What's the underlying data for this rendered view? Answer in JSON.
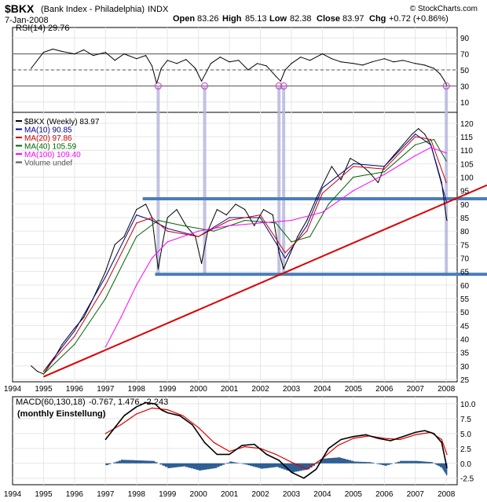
{
  "header": {
    "symbol": "$BKX",
    "name": "(Bank Index - Philadelphia)",
    "exchange": "INDX",
    "date": "7-Jan-2008",
    "logo": "© StockCharts.com",
    "open_label": "Open",
    "open": "83.26",
    "high_label": "High",
    "high": "85.13",
    "low_label": "Low",
    "low": "82.38",
    "close_label": "Close",
    "close": "83.97",
    "chg_label": "Chg",
    "chg": "+0.72 (+0.86%)"
  },
  "colors": {
    "price": "#000000",
    "ma10": "#00008b",
    "ma20": "#cc0000",
    "ma40": "#006400",
    "ma100": "#ff00ff",
    "trend": "#dd0000",
    "hlines": "#4a7ebb",
    "markers": "#b8b8dd",
    "macd_hist": "#2f5f94",
    "macd_signal": "#dd0000"
  },
  "chart_data": [
    {
      "type": "line",
      "title": "RSI(14) 29.76",
      "ylim": [
        0,
        100
      ],
      "yticks": [
        "90",
        "70",
        "50",
        "30",
        "10"
      ],
      "reference_lines": [
        70,
        50,
        30
      ],
      "series": [
        {
          "name": "RSI(14) 29.76",
          "x": [
            1994.6,
            1995.0,
            1995.3,
            1995.6,
            1996.0,
            1996.3,
            1996.6,
            1997.0,
            1997.3,
            1997.6,
            1998.0,
            1998.3,
            1998.5,
            1998.65,
            1998.8,
            1999.0,
            1999.3,
            1999.6,
            1999.9,
            2000.1,
            2000.4,
            2000.7,
            2001.0,
            2001.3,
            2001.6,
            2001.9,
            2002.2,
            2002.5,
            2002.65,
            2002.8,
            2003.0,
            2003.3,
            2003.6,
            2004.0,
            2004.3,
            2004.6,
            2005.0,
            2005.3,
            2005.6,
            2006.0,
            2006.3,
            2006.6,
            2007.0,
            2007.3,
            2007.6,
            2007.8,
            2007.95,
            2008.02
          ],
          "values": [
            52,
            72,
            76,
            73,
            70,
            75,
            68,
            72,
            62,
            70,
            64,
            68,
            55,
            33,
            52,
            62,
            58,
            63,
            52,
            36,
            58,
            66,
            60,
            62,
            50,
            58,
            55,
            42,
            36,
            50,
            58,
            66,
            62,
            70,
            64,
            60,
            58,
            56,
            60,
            64,
            60,
            62,
            58,
            56,
            52,
            45,
            36,
            30
          ]
        }
      ]
    },
    {
      "type": "line",
      "title": "$BKX (Weekly) 83.97",
      "ylim": [
        25,
        122
      ],
      "yticks": [
        "120",
        "115",
        "110",
        "105",
        "100",
        "95",
        "90",
        "85",
        "80",
        "75",
        "70",
        "65",
        "60",
        "55",
        "50",
        "45",
        "40",
        "35",
        "30",
        "25"
      ],
      "x_ticks": [
        "1994",
        "1995",
        "1996",
        "1997",
        "1998",
        "1999",
        "2000",
        "2001",
        "2002",
        "2003",
        "2004",
        "2005",
        "2006",
        "2007",
        "2008"
      ],
      "support_resistance": [
        92,
        64
      ],
      "trendline": {
        "x": [
          1995.0,
          2008.5
        ],
        "values": [
          26,
          93
        ]
      },
      "event_markers": [
        1998.7,
        2000.2,
        2002.6,
        2002.75,
        2008.0
      ],
      "series": [
        {
          "name": "$BKX (Weekly) 83.97",
          "x": [
            1994.6,
            1994.8,
            1995.0,
            1995.3,
            1995.6,
            1996.0,
            1996.3,
            1996.6,
            1997.0,
            1997.3,
            1997.6,
            1998.0,
            1998.3,
            1998.5,
            1998.7,
            1998.85,
            1999.0,
            1999.3,
            1999.6,
            1999.9,
            2000.1,
            2000.3,
            2000.6,
            2000.9,
            2001.2,
            2001.5,
            2001.8,
            2002.1,
            2002.4,
            2002.6,
            2002.75,
            2002.9,
            2003.2,
            2003.5,
            2003.8,
            2004.0,
            2004.3,
            2004.6,
            2004.9,
            2005.2,
            2005.5,
            2005.8,
            2006.0,
            2006.3,
            2006.6,
            2006.9,
            2007.1,
            2007.3,
            2007.5,
            2007.7,
            2007.85,
            2008.0,
            2008.02
          ],
          "values": [
            30,
            28,
            27,
            32,
            38,
            44,
            48,
            55,
            65,
            75,
            78,
            88,
            90,
            85,
            66,
            76,
            85,
            88,
            82,
            78,
            68,
            80,
            88,
            86,
            90,
            88,
            82,
            88,
            86,
            72,
            66,
            70,
            78,
            84,
            92,
            97,
            104,
            99,
            107,
            105,
            102,
            98,
            104,
            108,
            112,
            116,
            118,
            116,
            112,
            104,
            98,
            85,
            84
          ]
        },
        {
          "name": "MA(10) 90.85",
          "x": [
            1995.0,
            1996.0,
            1997.0,
            1998.0,
            1998.5,
            1999.0,
            2000.0,
            2001.0,
            2002.0,
            2002.8,
            2003.5,
            2004.0,
            2005.0,
            2006.0,
            2007.0,
            2007.5,
            2008.0
          ],
          "values": [
            28,
            43,
            63,
            86,
            84,
            81,
            78,
            85,
            85,
            70,
            82,
            96,
            105,
            104,
            116,
            112,
            91
          ]
        },
        {
          "name": "MA(20) 97.86",
          "x": [
            1995.0,
            1996.0,
            1997.0,
            1998.0,
            1998.5,
            1999.0,
            2000.0,
            2001.0,
            2002.0,
            2002.8,
            2003.5,
            2004.0,
            2005.0,
            2006.0,
            2007.0,
            2007.5,
            2008.0
          ],
          "values": [
            28,
            41,
            60,
            83,
            85,
            80,
            78,
            84,
            86,
            72,
            80,
            94,
            104,
            103,
            115,
            114,
            98
          ]
        },
        {
          "name": "MA(40) 105.59",
          "x": [
            1995.0,
            1996.0,
            1997.0,
            1998.0,
            1998.7,
            1999.5,
            2000.5,
            2001.5,
            2002.5,
            2003.0,
            2003.6,
            2004.2,
            2005.0,
            2006.0,
            2007.0,
            2007.6,
            2008.0
          ],
          "values": [
            27,
            38,
            55,
            78,
            84,
            82,
            80,
            84,
            83,
            76,
            78,
            90,
            100,
            102,
            112,
            114,
            106
          ]
        },
        {
          "name": "MA(100) 109.40",
          "x": [
            1997.0,
            1997.5,
            1998.0,
            1998.5,
            1999.0,
            2000.0,
            2001.0,
            2002.0,
            2003.0,
            2004.0,
            2005.0,
            2006.0,
            2007.0,
            2007.5,
            2008.0
          ],
          "values": [
            37,
            48,
            60,
            70,
            76,
            80,
            82,
            83,
            84,
            87,
            95,
            101,
            108,
            111,
            109
          ]
        }
      ],
      "legend": [
        "$BKX (Weekly) 83.97",
        "MA(10) 90.85",
        "MA(20) 97.86",
        "MA(40) 105.59",
        "MA(100) 109.40",
        "Volume undef"
      ]
    },
    {
      "type": "line",
      "title": "MACD(60,130,18) -0.767, 1.476, -2.243",
      "annotation": "(monthly Einstellung)",
      "ylim": [
        -3.2,
        10.8
      ],
      "yticks": [
        "10.0",
        "7.5",
        "5.0",
        "2.5",
        "0.0",
        "-2.5"
      ],
      "series": [
        {
          "name": "MACD",
          "x": [
            1997.0,
            1997.3,
            1997.6,
            1998.0,
            1998.3,
            1998.6,
            1998.8,
            1999.0,
            1999.4,
            1999.8,
            2000.2,
            2000.6,
            2001.0,
            2001.4,
            2001.8,
            2002.2,
            2002.6,
            2003.0,
            2003.4,
            2003.8,
            2004.2,
            2004.6,
            2005.0,
            2005.4,
            2005.8,
            2006.2,
            2006.6,
            2007.0,
            2007.3,
            2007.6,
            2007.85,
            2008.02
          ],
          "values": [
            4.0,
            6.0,
            8.0,
            9.5,
            10.2,
            10.0,
            9.0,
            8.5,
            8.0,
            6.5,
            3.5,
            1.5,
            1.5,
            3.0,
            3.2,
            1.5,
            0.5,
            -1.5,
            -2.5,
            -1.0,
            2.5,
            4.0,
            4.5,
            4.8,
            4.2,
            3.8,
            4.5,
            5.2,
            5.5,
            5.0,
            3.5,
            -0.767
          ]
        },
        {
          "name": "Signal",
          "x": [
            1997.0,
            1997.5,
            1998.0,
            1998.5,
            1999.0,
            1999.5,
            2000.0,
            2000.5,
            2001.0,
            2001.5,
            2002.0,
            2002.5,
            2003.0,
            2003.5,
            2004.0,
            2004.5,
            2005.0,
            2005.5,
            2006.0,
            2006.5,
            2007.0,
            2007.5,
            2007.85,
            2008.02
          ],
          "values": [
            5.0,
            6.5,
            8.3,
            9.3,
            9.0,
            8.0,
            6.0,
            3.5,
            2.0,
            2.8,
            2.5,
            1.5,
            0.2,
            -1.0,
            0.8,
            3.0,
            4.2,
            4.6,
            4.2,
            4.0,
            4.8,
            5.2,
            4.0,
            1.476
          ]
        },
        {
          "name": "Histogram",
          "x": [
            1997.0,
            1997.5,
            1998.0,
            1998.5,
            1999.0,
            1999.5,
            2000.0,
            2000.5,
            2001.0,
            2001.5,
            2002.0,
            2002.5,
            2003.0,
            2003.5,
            2004.0,
            2004.5,
            2005.0,
            2005.5,
            2006.0,
            2006.5,
            2007.0,
            2007.5,
            2007.85,
            2008.02
          ],
          "values": [
            -0.3,
            0.6,
            0.5,
            0.4,
            -0.8,
            -0.5,
            -1.2,
            -0.8,
            0.3,
            -0.2,
            -0.9,
            -0.6,
            -1.5,
            -1.0,
            0.8,
            1.0,
            0.3,
            0.2,
            -0.4,
            0.4,
            0.4,
            0.2,
            -0.8,
            -2.243
          ]
        }
      ]
    }
  ]
}
